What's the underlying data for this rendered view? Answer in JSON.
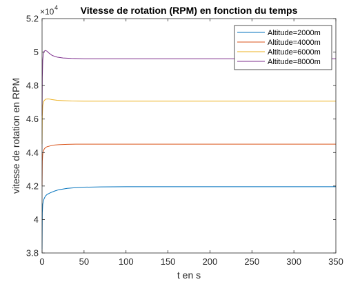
{
  "chart_data": {
    "type": "line",
    "title": "Vitesse de rotation (RPM) en fonction du temps",
    "xlabel": "t en s",
    "ylabel": "vitesse de rotation en RPM",
    "exponent_label": "×10",
    "exponent_power": "4",
    "xlim": [
      0,
      350
    ],
    "ylim": [
      3.8,
      5.2
    ],
    "x_ticks": [
      0,
      50,
      100,
      150,
      200,
      250,
      300,
      350
    ],
    "y_ticks": [
      3.8,
      4,
      4.2,
      4.4,
      4.6,
      4.8,
      5,
      5.2
    ],
    "x_tick_labels": [
      "0",
      "50",
      "100",
      "150",
      "200",
      "250",
      "300",
      "350"
    ],
    "y_tick_labels": [
      "3.8",
      "4",
      "4.2",
      "4.4",
      "4.6",
      "4.8",
      "5",
      "5.2"
    ],
    "legend_position": "top-right",
    "grid": false,
    "series": [
      {
        "name": "Altitude=2000m",
        "color": "#0072BD",
        "x": [
          0,
          0.3,
          0.8,
          1.5,
          2.5,
          4,
          6,
          10,
          15,
          20,
          30,
          40,
          50,
          70,
          100,
          150,
          200,
          250,
          300,
          350
        ],
        "y": [
          3.82,
          4.04,
          4.09,
          4.11,
          4.125,
          4.14,
          4.15,
          4.16,
          4.17,
          4.178,
          4.186,
          4.19,
          4.193,
          4.195,
          4.196,
          4.196,
          4.196,
          4.196,
          4.196,
          4.196
        ]
      },
      {
        "name": "Altitude=4000m",
        "color": "#D95319",
        "x": [
          0,
          0.3,
          0.8,
          1.5,
          2.5,
          4,
          6,
          10,
          15,
          20,
          30,
          40,
          50,
          70,
          100,
          150,
          200,
          250,
          300,
          350
        ],
        "y": [
          4.2,
          4.35,
          4.39,
          4.41,
          4.42,
          4.43,
          4.435,
          4.44,
          4.445,
          4.447,
          4.449,
          4.45,
          4.45,
          4.45,
          4.45,
          4.45,
          4.45,
          4.45,
          4.45,
          4.45
        ]
      },
      {
        "name": "Altitude=6000m",
        "color": "#EDB120",
        "x": [
          0,
          0.3,
          0.8,
          1.5,
          2.5,
          4,
          6,
          8,
          12,
          18,
          25,
          35,
          50,
          70,
          100,
          150,
          200,
          250,
          300,
          350
        ],
        "y": [
          4.45,
          4.62,
          4.68,
          4.7,
          4.71,
          4.718,
          4.72,
          4.72,
          4.716,
          4.712,
          4.71,
          4.708,
          4.707,
          4.707,
          4.707,
          4.707,
          4.707,
          4.707,
          4.707,
          4.707
        ]
      },
      {
        "name": "Altitude=8000m",
        "color": "#7E2F8E",
        "x": [
          0,
          0.3,
          0.8,
          1.5,
          2.5,
          4,
          6,
          8,
          12,
          18,
          25,
          35,
          50,
          70,
          100,
          150,
          200,
          250,
          300,
          350
        ],
        "y": [
          4.62,
          4.85,
          4.95,
          4.99,
          5.005,
          5.01,
          5.005,
          4.995,
          4.98,
          4.97,
          4.965,
          4.962,
          4.96,
          4.96,
          4.96,
          4.96,
          4.96,
          4.96,
          4.96,
          4.96
        ]
      }
    ]
  }
}
